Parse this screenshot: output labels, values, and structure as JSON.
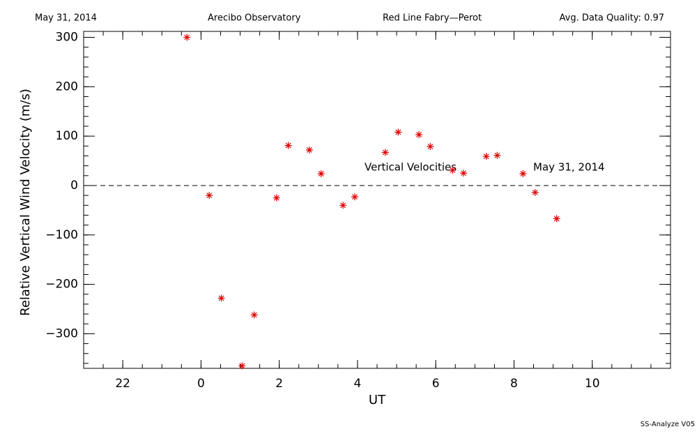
{
  "chart_data": {
    "type": "scatter",
    "header": [
      "May 31, 2014",
      "Arecibo Observatory",
      "Red Line Fabry—Perot",
      "Avg. Data Quality: 0.97"
    ],
    "xlabel": "UT",
    "ylabel": "Relative Vertical Wind Velocity (m/s)",
    "annotations": [
      "Vertical Velocities",
      "May 31, 2014"
    ],
    "footer": "SS-Analyze V05",
    "xlim": [
      -3,
      12
    ],
    "ylim": [
      -370,
      312
    ],
    "xticks": [
      {
        "value": -2,
        "label": "22"
      },
      0,
      2,
      4,
      6,
      8,
      10
    ],
    "yticks": [
      {
        "value": -300,
        "label": "−300"
      },
      {
        "value": -200,
        "label": "−200"
      },
      {
        "value": -100,
        "label": "−100"
      },
      0,
      100,
      200,
      300
    ],
    "series": [
      {
        "name": "Vertical Velocities",
        "color": "#e00000",
        "x": [
          -0.36,
          0.21,
          0.52,
          1.05,
          1.36,
          1.93,
          2.23,
          2.77,
          3.07,
          3.63,
          3.93,
          4.71,
          5.04,
          5.57,
          5.86,
          6.43,
          6.71,
          7.29,
          7.57,
          8.23,
          8.54,
          9.09
        ],
        "values": [
          300,
          -20,
          -228,
          -365,
          -262,
          -25,
          81,
          72,
          24,
          -40,
          -23,
          67,
          108,
          103,
          79,
          31,
          25,
          59,
          61,
          24,
          -14,
          -67
        ]
      }
    ]
  }
}
